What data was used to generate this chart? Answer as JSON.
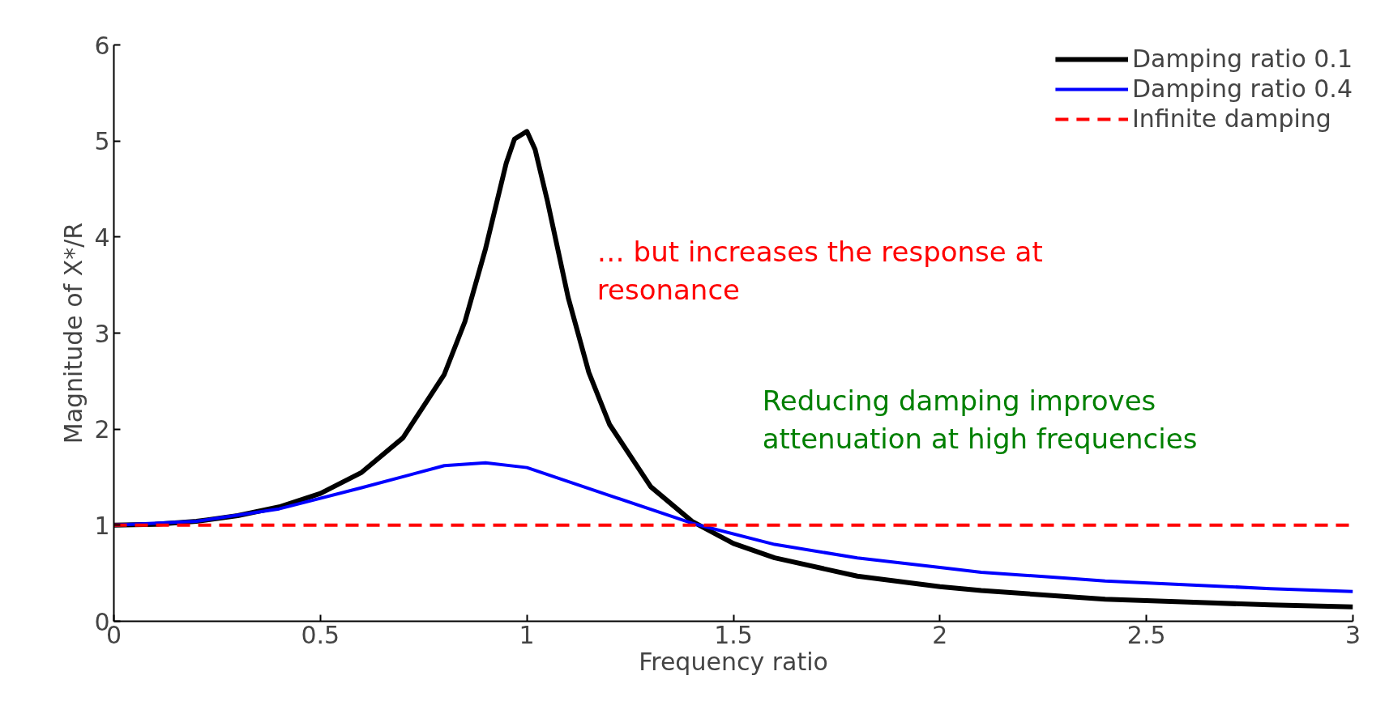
{
  "chart_data": {
    "type": "line",
    "xlabel": "Frequency ratio",
    "ylabel": "Magnitude of X*/R",
    "xlim": [
      0,
      3
    ],
    "ylim": [
      0,
      6
    ],
    "xticks": [
      0,
      0.5,
      1,
      1.5,
      2,
      2.5,
      3
    ],
    "yticks": [
      0,
      1,
      2,
      3,
      4,
      5,
      6
    ],
    "grid": false,
    "legend": "top right",
    "marker": "none",
    "series": [
      {
        "name": "Damping ratio 0.1",
        "color": "#000000",
        "line_style": "solid",
        "x": [
          0,
          0.1,
          0.2,
          0.3,
          0.4,
          0.5,
          0.6,
          0.7,
          0.8,
          0.85,
          0.9,
          0.95,
          0.97,
          1.0,
          1.02,
          1.05,
          1.1,
          1.15,
          1.2,
          1.3,
          1.4,
          1.5,
          1.6,
          1.8,
          2.0,
          2.1,
          2.3,
          2.4,
          2.6,
          2.8,
          3.0
        ],
        "values": [
          1,
          1.01,
          1.04,
          1.1,
          1.19,
          1.33,
          1.55,
          1.91,
          2.57,
          3.12,
          3.88,
          4.77,
          5.02,
          5.1,
          4.91,
          4.37,
          3.37,
          2.59,
          2.05,
          1.4,
          1.04,
          0.81,
          0.66,
          0.47,
          0.36,
          0.32,
          0.26,
          0.23,
          0.2,
          0.17,
          0.15
        ]
      },
      {
        "name": "Damping ratio 0.4",
        "color": "#0000ff",
        "line_style": "solid",
        "x": [
          0,
          0.2,
          0.4,
          0.6,
          0.8,
          0.9,
          1.0,
          1.2,
          1.4,
          1.6,
          1.8,
          2.0,
          2.1,
          2.3,
          2.4,
          2.6,
          2.8,
          3.0
        ],
        "values": [
          1,
          1.04,
          1.17,
          1.39,
          1.62,
          1.65,
          1.6,
          1.31,
          1.02,
          0.8,
          0.66,
          0.56,
          0.51,
          0.45,
          0.42,
          0.38,
          0.34,
          0.31
        ]
      },
      {
        "name": "Infinite damping",
        "color": "#ff0000",
        "line_style": "dashed",
        "x": [
          0,
          3
        ],
        "values": [
          1,
          1
        ]
      }
    ],
    "annotations": [
      "… but increases the response at resonance",
      "Reducing damping improves attenuation at high frequencies"
    ]
  }
}
